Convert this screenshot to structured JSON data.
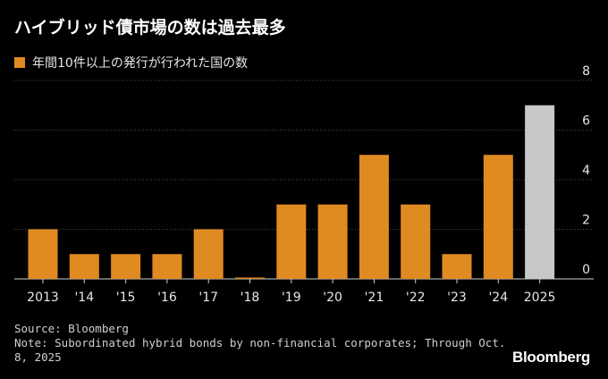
{
  "title": "ハイブリッド債市場の数は過去最多",
  "legend": {
    "label": "年間10件以上の発行が行われた国の数"
  },
  "colors": {
    "bar": "#e08a22",
    "bar_highlight": "#c8c8c8",
    "grid": "#4a4a4a",
    "axis": "#cfcfcf"
  },
  "chart_data": {
    "type": "bar",
    "categories": [
      "2013",
      "'14",
      "'15",
      "'16",
      "'17",
      "'18",
      "'19",
      "'20",
      "'21",
      "'22",
      "'23",
      "'24",
      "2025"
    ],
    "values": [
      2,
      1,
      1,
      1,
      2,
      0,
      3,
      3,
      5,
      3,
      1,
      5,
      7
    ],
    "highlight_index": 12,
    "ylim": [
      0,
      8
    ],
    "yticks": [
      0,
      2,
      4,
      6,
      8
    ],
    "y_axis_position": "right",
    "grid": true,
    "xlabel": "",
    "ylabel": ""
  },
  "footer": {
    "source": "Source: Bloomberg",
    "note_line1": "Note: Subordinated hybrid bonds by non-financial corporates; Through Oct.",
    "note_line2": "8, 2025"
  },
  "logo": "Bloomberg"
}
